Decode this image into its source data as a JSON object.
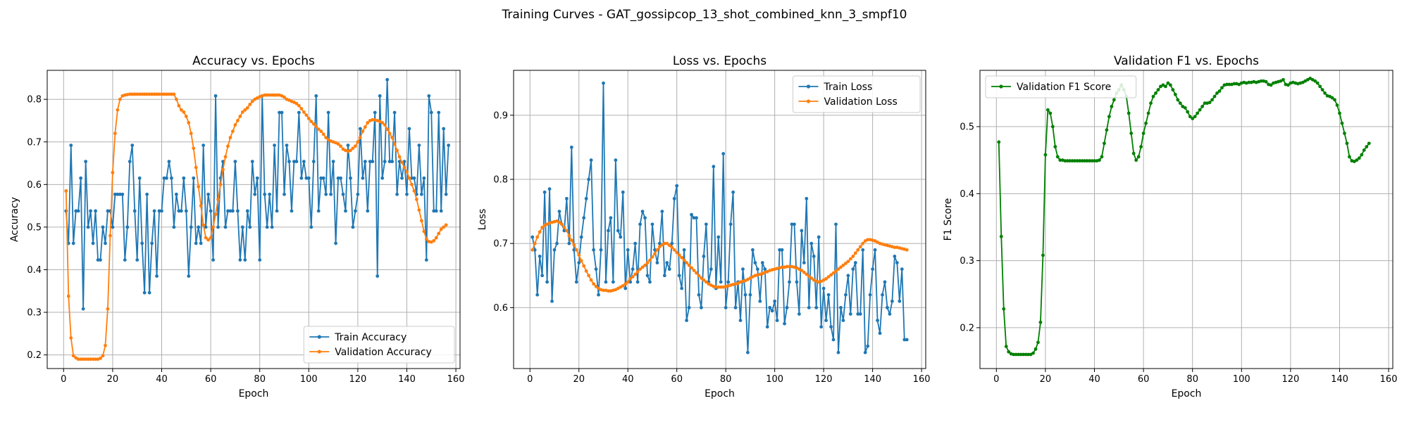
{
  "suptitle": "Training Curves - GAT_gossipcop_13_shot_combined_knn_3_smpf10",
  "colors": {
    "train": "#1f77b4",
    "val": "#ff7f0e",
    "f1": "#008000",
    "grid": "#b0b0b0"
  },
  "chart_data": [
    {
      "type": "line",
      "title": "Accuracy vs. Epochs",
      "xlabel": "Epoch",
      "ylabel": "Accuracy",
      "xlim": [
        -6.7,
        161.7
      ],
      "ylim": [
        0.168,
        0.868
      ],
      "xticks": [
        0,
        20,
        40,
        60,
        80,
        100,
        120,
        140,
        160
      ],
      "yticks": [
        0.2,
        0.3,
        0.4,
        0.5,
        0.6,
        0.7,
        0.8
      ],
      "grid": true,
      "legend": "lower-right",
      "series": [
        {
          "name": "Train Accuracy",
          "color": "#1f77b4",
          "values": [
            0.538,
            0.462,
            0.692,
            0.462,
            0.538,
            0.538,
            0.615,
            0.308,
            0.654,
            0.5,
            0.538,
            0.462,
            0.538,
            0.423,
            0.423,
            0.5,
            0.462,
            0.538,
            0.538,
            0.5,
            0.577,
            0.577,
            0.577,
            0.577,
            0.423,
            0.5,
            0.654,
            0.692,
            0.538,
            0.423,
            0.615,
            0.462,
            0.346,
            0.577,
            0.346,
            0.462,
            0.538,
            0.385,
            0.538,
            0.538,
            0.615,
            0.615,
            0.654,
            0.615,
            0.5,
            0.577,
            0.538,
            0.538,
            0.615,
            0.538,
            0.385,
            0.5,
            0.615,
            0.462,
            0.5,
            0.462,
            0.692,
            0.5,
            0.577,
            0.538,
            0.423,
            0.808,
            0.5,
            0.615,
            0.654,
            0.5,
            0.538,
            0.538,
            0.538,
            0.654,
            0.538,
            0.423,
            0.5,
            0.423,
            0.538,
            0.5,
            0.654,
            0.577,
            0.615,
            0.423,
            0.808,
            0.577,
            0.5,
            0.577,
            0.5,
            0.692,
            0.538,
            0.769,
            0.769,
            0.577,
            0.692,
            0.654,
            0.538,
            0.654,
            0.654,
            0.769,
            0.615,
            0.654,
            0.615,
            0.615,
            0.5,
            0.654,
            0.808,
            0.538,
            0.615,
            0.615,
            0.577,
            0.769,
            0.577,
            0.654,
            0.462,
            0.615,
            0.615,
            0.577,
            0.538,
            0.692,
            0.615,
            0.5,
            0.538,
            0.577,
            0.731,
            0.615,
            0.654,
            0.538,
            0.654,
            0.654,
            0.769,
            0.385,
            0.808,
            0.615,
            0.654,
            0.846,
            0.654,
            0.654,
            0.769,
            0.577,
            0.654,
            0.615,
            0.654,
            0.577,
            0.731,
            0.615,
            0.615,
            0.577,
            0.692,
            0.577,
            0.615,
            0.423,
            0.808,
            0.769,
            0.538,
            0.538,
            0.769,
            0.538,
            0.731,
            0.577,
            0.692
          ]
        },
        {
          "name": "Validation Accuracy",
          "color": "#ff7f0e",
          "values": [
            0.585,
            0.338,
            0.24,
            0.198,
            0.193,
            0.19,
            0.19,
            0.19,
            0.19,
            0.19,
            0.19,
            0.19,
            0.19,
            0.19,
            0.192,
            0.198,
            0.222,
            0.308,
            0.48,
            0.628,
            0.72,
            0.775,
            0.8,
            0.808,
            0.81,
            0.811,
            0.812,
            0.812,
            0.812,
            0.812,
            0.812,
            0.812,
            0.812,
            0.812,
            0.812,
            0.812,
            0.812,
            0.812,
            0.812,
            0.812,
            0.812,
            0.812,
            0.812,
            0.812,
            0.812,
            0.8,
            0.785,
            0.775,
            0.77,
            0.76,
            0.745,
            0.72,
            0.685,
            0.64,
            0.595,
            0.55,
            0.505,
            0.475,
            0.47,
            0.475,
            0.5,
            0.53,
            0.565,
            0.6,
            0.635,
            0.665,
            0.69,
            0.71,
            0.725,
            0.74,
            0.75,
            0.76,
            0.77,
            0.775,
            0.78,
            0.788,
            0.795,
            0.8,
            0.803,
            0.806,
            0.808,
            0.81,
            0.81,
            0.81,
            0.81,
            0.81,
            0.81,
            0.81,
            0.808,
            0.805,
            0.8,
            0.798,
            0.795,
            0.793,
            0.79,
            0.785,
            0.778,
            0.77,
            0.763,
            0.755,
            0.748,
            0.742,
            0.736,
            0.73,
            0.725,
            0.718,
            0.71,
            0.705,
            0.702,
            0.7,
            0.698,
            0.695,
            0.69,
            0.683,
            0.68,
            0.678,
            0.68,
            0.685,
            0.69,
            0.7,
            0.71,
            0.725,
            0.735,
            0.745,
            0.75,
            0.752,
            0.752,
            0.75,
            0.748,
            0.745,
            0.74,
            0.73,
            0.72,
            0.71,
            0.695,
            0.68,
            0.665,
            0.652,
            0.64,
            0.63,
            0.615,
            0.6,
            0.585,
            0.565,
            0.54,
            0.515,
            0.49,
            0.472,
            0.466,
            0.465,
            0.468,
            0.475,
            0.485,
            0.495,
            0.5,
            0.505
          ]
        }
      ]
    },
    {
      "type": "line",
      "title": "Loss vs. Epochs",
      "xlabel": "Epoch",
      "ylabel": "Loss",
      "xlim": [
        -6.7,
        161.7
      ],
      "ylim": [
        0.505,
        0.97
      ],
      "xticks": [
        0,
        20,
        40,
        60,
        80,
        100,
        120,
        140,
        160
      ],
      "yticks": [
        0.6,
        0.7,
        0.8,
        0.9
      ],
      "grid": true,
      "legend": "upper-right",
      "series": [
        {
          "name": "Train Loss",
          "color": "#1f77b4",
          "values": [
            0.71,
            0.69,
            0.62,
            0.68,
            0.65,
            0.78,
            0.64,
            0.785,
            0.61,
            0.69,
            0.7,
            0.75,
            0.73,
            0.72,
            0.77,
            0.7,
            0.85,
            0.69,
            0.64,
            0.67,
            0.71,
            0.74,
            0.77,
            0.8,
            0.83,
            0.69,
            0.66,
            0.62,
            0.69,
            0.95,
            0.64,
            0.72,
            0.74,
            0.64,
            0.83,
            0.72,
            0.71,
            0.78,
            0.63,
            0.69,
            0.64,
            0.66,
            0.7,
            0.64,
            0.73,
            0.75,
            0.74,
            0.65,
            0.64,
            0.73,
            0.69,
            0.67,
            0.7,
            0.75,
            0.65,
            0.67,
            0.66,
            0.7,
            0.77,
            0.79,
            0.65,
            0.63,
            0.69,
            0.58,
            0.6,
            0.745,
            0.74,
            0.74,
            0.62,
            0.6,
            0.68,
            0.73,
            0.64,
            0.66,
            0.82,
            0.63,
            0.71,
            0.64,
            0.84,
            0.6,
            0.64,
            0.73,
            0.78,
            0.6,
            0.64,
            0.58,
            0.66,
            0.62,
            0.53,
            0.62,
            0.69,
            0.67,
            0.66,
            0.61,
            0.67,
            0.66,
            0.57,
            0.6,
            0.595,
            0.61,
            0.58,
            0.69,
            0.69,
            0.575,
            0.6,
            0.64,
            0.73,
            0.73,
            0.64,
            0.59,
            0.72,
            0.67,
            0.77,
            0.6,
            0.7,
            0.68,
            0.6,
            0.71,
            0.57,
            0.63,
            0.58,
            0.62,
            0.57,
            0.55,
            0.73,
            0.53,
            0.6,
            0.58,
            0.62,
            0.65,
            0.59,
            0.66,
            0.67,
            0.59,
            0.59,
            0.69,
            0.53,
            0.54,
            0.62,
            0.66,
            0.69,
            0.58,
            0.56,
            0.62,
            0.64,
            0.6,
            0.59,
            0.61,
            0.68,
            0.67,
            0.61,
            0.66,
            0.55,
            0.55
          ]
        },
        {
          "name": "Validation Loss",
          "color": "#ff7f0e",
          "values": [
            0.69,
            0.7,
            0.71,
            0.718,
            0.725,
            0.728,
            0.73,
            0.732,
            0.733,
            0.734,
            0.735,
            0.733,
            0.73,
            0.725,
            0.72,
            0.712,
            0.705,
            0.698,
            0.69,
            0.682,
            0.673,
            0.665,
            0.657,
            0.65,
            0.643,
            0.637,
            0.633,
            0.63,
            0.628,
            0.627,
            0.627,
            0.626,
            0.626,
            0.627,
            0.628,
            0.63,
            0.632,
            0.634,
            0.637,
            0.64,
            0.645,
            0.648,
            0.652,
            0.656,
            0.66,
            0.663,
            0.666,
            0.67,
            0.674,
            0.679,
            0.684,
            0.69,
            0.695,
            0.698,
            0.7,
            0.7,
            0.697,
            0.694,
            0.69,
            0.686,
            0.682,
            0.678,
            0.674,
            0.67,
            0.666,
            0.662,
            0.658,
            0.654,
            0.65,
            0.646,
            0.643,
            0.64,
            0.637,
            0.635,
            0.633,
            0.632,
            0.632,
            0.632,
            0.632,
            0.633,
            0.634,
            0.635,
            0.636,
            0.637,
            0.638,
            0.64,
            0.641,
            0.642,
            0.644,
            0.646,
            0.648,
            0.65,
            0.651,
            0.652,
            0.653,
            0.655,
            0.656,
            0.658,
            0.659,
            0.66,
            0.661,
            0.662,
            0.663,
            0.663,
            0.664,
            0.664,
            0.664,
            0.663,
            0.662,
            0.66,
            0.658,
            0.655,
            0.652,
            0.649,
            0.646,
            0.643,
            0.641,
            0.64,
            0.641,
            0.643,
            0.645,
            0.648,
            0.651,
            0.654,
            0.657,
            0.66,
            0.663,
            0.666,
            0.669,
            0.672,
            0.676,
            0.68,
            0.685,
            0.69,
            0.695,
            0.7,
            0.704,
            0.706,
            0.706,
            0.705,
            0.704,
            0.702,
            0.7,
            0.699,
            0.698,
            0.697,
            0.696,
            0.695,
            0.694,
            0.694,
            0.693,
            0.692,
            0.691,
            0.69
          ]
        }
      ]
    },
    {
      "type": "line",
      "title": "Validation F1 vs. Epochs",
      "xlabel": "Epoch",
      "ylabel": "F1 Score",
      "xlim": [
        -6.7,
        161.7
      ],
      "ylim": [
        0.139,
        0.584
      ],
      "xticks": [
        0,
        20,
        40,
        60,
        80,
        100,
        120,
        140,
        160
      ],
      "yticks": [
        0.2,
        0.3,
        0.4,
        0.5
      ],
      "grid": true,
      "legend": "upper-left",
      "series": [
        {
          "name": "Validation F1 Score",
          "color": "#008000",
          "values": [
            0.477,
            0.336,
            0.228,
            0.172,
            0.164,
            0.161,
            0.16,
            0.16,
            0.16,
            0.16,
            0.16,
            0.16,
            0.16,
            0.16,
            0.162,
            0.168,
            0.178,
            0.208,
            0.308,
            0.458,
            0.525,
            0.52,
            0.5,
            0.47,
            0.455,
            0.45,
            0.45,
            0.449,
            0.449,
            0.449,
            0.449,
            0.449,
            0.449,
            0.449,
            0.449,
            0.449,
            0.449,
            0.449,
            0.449,
            0.449,
            0.449,
            0.45,
            0.455,
            0.475,
            0.495,
            0.515,
            0.53,
            0.54,
            0.55,
            0.555,
            0.562,
            0.555,
            0.545,
            0.52,
            0.49,
            0.46,
            0.45,
            0.455,
            0.47,
            0.49,
            0.505,
            0.52,
            0.535,
            0.545,
            0.55,
            0.555,
            0.56,
            0.562,
            0.56,
            0.565,
            0.562,
            0.555,
            0.548,
            0.54,
            0.535,
            0.53,
            0.528,
            0.522,
            0.515,
            0.512,
            0.515,
            0.52,
            0.525,
            0.53,
            0.535,
            0.535,
            0.536,
            0.54,
            0.545,
            0.55,
            0.553,
            0.558,
            0.562,
            0.563,
            0.563,
            0.563,
            0.564,
            0.564,
            0.563,
            0.565,
            0.566,
            0.565,
            0.566,
            0.566,
            0.567,
            0.566,
            0.567,
            0.568,
            0.568,
            0.567,
            0.563,
            0.562,
            0.565,
            0.566,
            0.567,
            0.568,
            0.57,
            0.563,
            0.562,
            0.565,
            0.566,
            0.565,
            0.564,
            0.565,
            0.566,
            0.568,
            0.57,
            0.572,
            0.57,
            0.568,
            0.565,
            0.56,
            0.555,
            0.55,
            0.546,
            0.545,
            0.543,
            0.54,
            0.532,
            0.52,
            0.505,
            0.49,
            0.475,
            0.455,
            0.449,
            0.448,
            0.45,
            0.453,
            0.458,
            0.465,
            0.47,
            0.475
          ]
        }
      ]
    }
  ]
}
